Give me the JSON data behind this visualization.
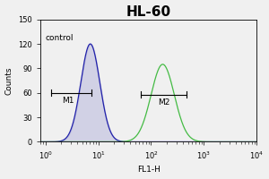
{
  "title": "HL-60",
  "xlabel": "FL1-H",
  "ylabel": "Counts",
  "xlim_min": 0.8,
  "xlim_max": 10000,
  "ylim": [
    0,
    150
  ],
  "yticks": [
    0,
    30,
    60,
    90,
    120,
    150
  ],
  "control_color": "#2222aa",
  "sample_color": "#44bb44",
  "background_color": "#f0f0f0",
  "plot_bg_color": "#f0f0f0",
  "control_mean_log": 0.85,
  "control_sigma": 0.18,
  "control_peak_scale": 120,
  "sample_mean_log": 2.22,
  "sample_sigma": 0.22,
  "sample_peak_scale": 95,
  "M1_x_start": 1.3,
  "M1_x_end": 7.5,
  "M1_y": 60,
  "M2_x_start": 65,
  "M2_x_end": 470,
  "M2_y": 58,
  "annotation_control": "control",
  "annotation_M1": "M1",
  "annotation_M2": "M2",
  "title_fontsize": 11,
  "label_fontsize": 6.5,
  "tick_fontsize": 6,
  "annot_fontsize": 6.5
}
